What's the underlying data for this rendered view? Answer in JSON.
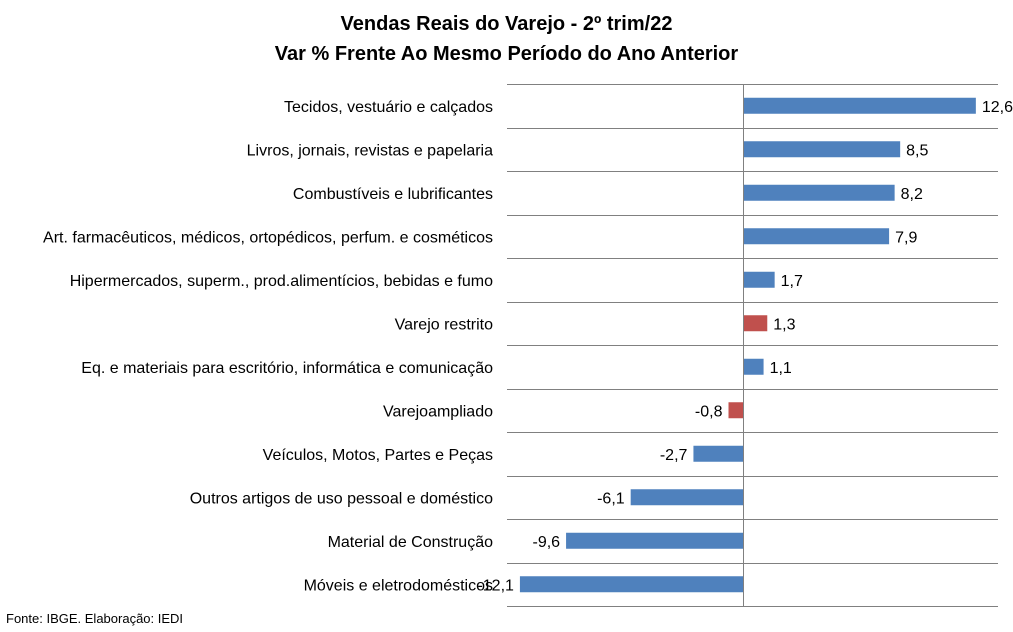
{
  "chart_data": {
    "type": "bar",
    "orientation": "horizontal",
    "title": "Vendas Reais do Varejo - 2º trim/22",
    "subtitle": "Var % Frente Ao Mesmo Período do Ano Anterior",
    "categories": [
      "Tecidos, vestuário e calçados",
      "Livros, jornais, revistas e papelaria",
      "Combustíveis e lubrificantes",
      "Art. farmacêuticos, médicos, ortopédicos, perfum. e cosméticos",
      "Hipermercados, superm., prod.alimentícios, bebidas e fumo",
      "Varejo restrito",
      "Eq. e materiais para escritório, informática e comunicação",
      "Varejoampliado",
      "Veículos, Motos, Partes e Peças",
      "Outros artigos de uso pessoal e doméstico",
      "Material de Construção",
      "Móveis e eletrodomésticos"
    ],
    "values": [
      12.6,
      8.5,
      8.2,
      7.9,
      1.7,
      1.3,
      1.1,
      -0.8,
      -2.7,
      -6.1,
      -9.6,
      -12.1
    ],
    "value_labels": [
      "12,6",
      "8,5",
      "8,2",
      "7,9",
      "1,7",
      "1,3",
      "1,1",
      "-0,8",
      "-2,7",
      "-6,1",
      "-9,6",
      "-12,1"
    ],
    "highlighted": [
      false,
      false,
      false,
      false,
      false,
      true,
      false,
      true,
      false,
      false,
      false,
      false
    ],
    "colors": {
      "bar": "#4f81bd",
      "highlight": "#c0504d",
      "grid": "#808080"
    },
    "xlim": [
      -12.8,
      13.8
    ],
    "grid": true,
    "legend": "none"
  },
  "footnote": "Fonte: IBGE. Elaboração: IEDI"
}
